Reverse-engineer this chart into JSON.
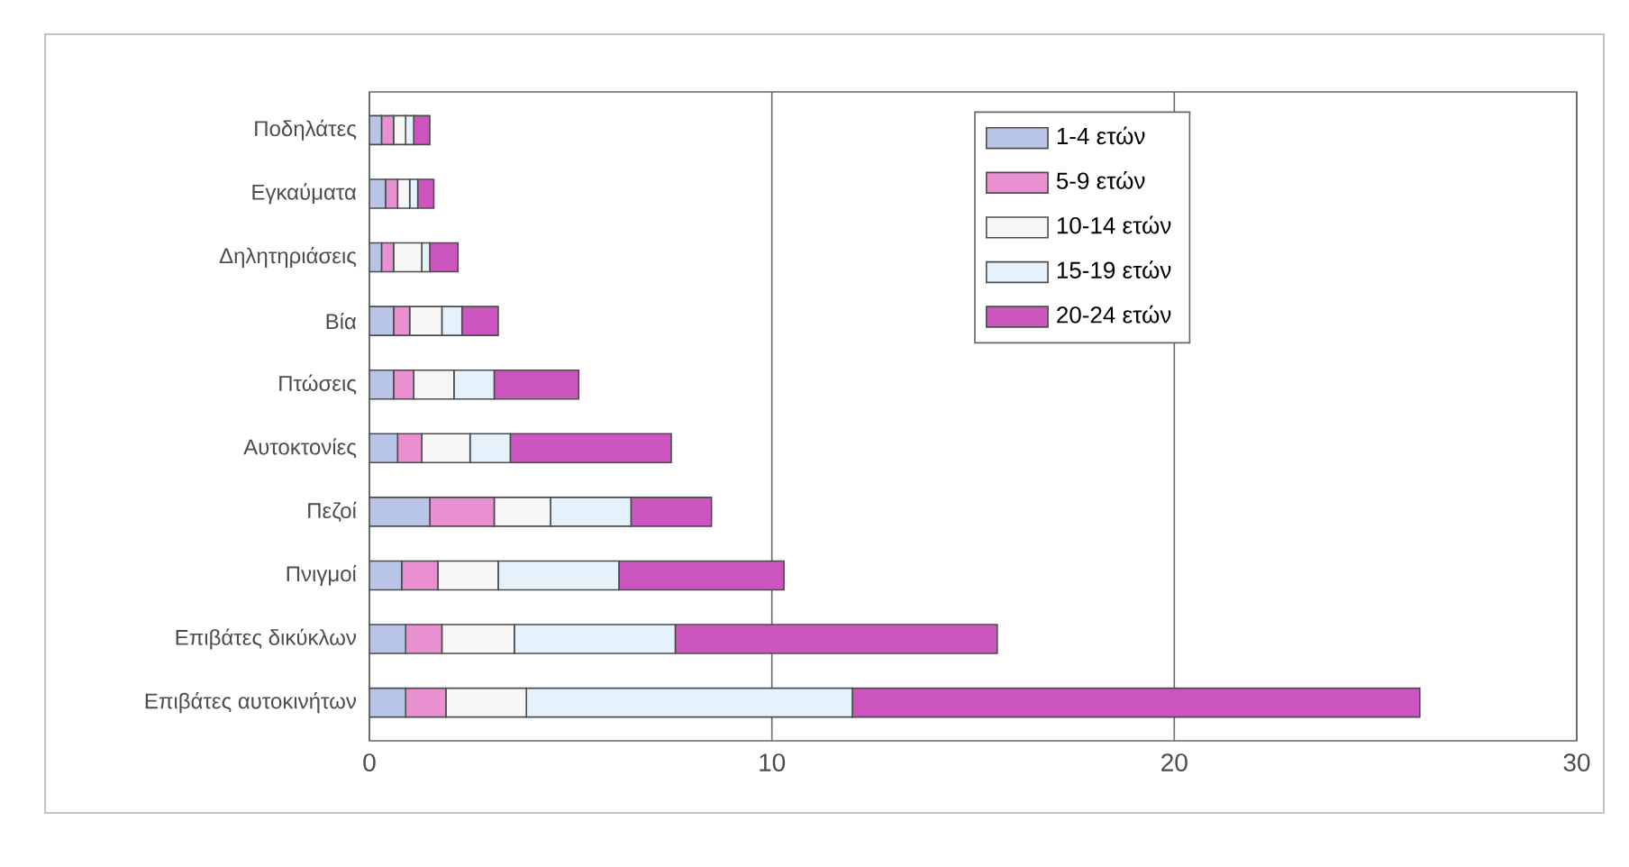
{
  "chart_data": {
    "type": "bar",
    "orientation": "horizontal",
    "stacked": true,
    "categories": [
      "Ποδηλάτες",
      "Εγκαύματα",
      "Δηλητηριάσεις",
      "Βία",
      "Πτώσεις",
      "Αυτοκτονίες",
      "Πεζοί",
      "Πνιγμοί",
      "Επιβάτες δικύκλων",
      "Επιβάτες αυτοκινήτων"
    ],
    "series": [
      {
        "name": "1-4 ετών",
        "color": "#b8c4e8",
        "values": [
          0.3,
          0.4,
          0.3,
          0.6,
          0.6,
          0.7,
          1.5,
          0.8,
          0.9,
          0.9
        ]
      },
      {
        "name": "5-9 ετών",
        "color": "#e890d0",
        "values": [
          0.3,
          0.3,
          0.3,
          0.4,
          0.5,
          0.6,
          1.6,
          0.9,
          0.9,
          1.0
        ]
      },
      {
        "name": "10-14 ετών",
        "color": "#f7f7f7",
        "values": [
          0.3,
          0.3,
          0.7,
          0.8,
          1.0,
          1.2,
          1.4,
          1.5,
          1.8,
          2.0
        ]
      },
      {
        "name": "15-19 ετών",
        "color": "#e6f2fb",
        "values": [
          0.2,
          0.2,
          0.2,
          0.5,
          1.0,
          1.0,
          2.0,
          3.0,
          4.0,
          8.1
        ]
      },
      {
        "name": "20-24 ετών",
        "color": "#cc55c0",
        "values": [
          0.4,
          0.4,
          0.7,
          0.9,
          2.1,
          4.0,
          2.0,
          4.1,
          8.0,
          14.1
        ]
      }
    ],
    "xlim": [
      0,
      30
    ],
    "xticks": [
      0,
      10,
      20,
      30
    ],
    "grid": "x",
    "legend": "top right"
  }
}
